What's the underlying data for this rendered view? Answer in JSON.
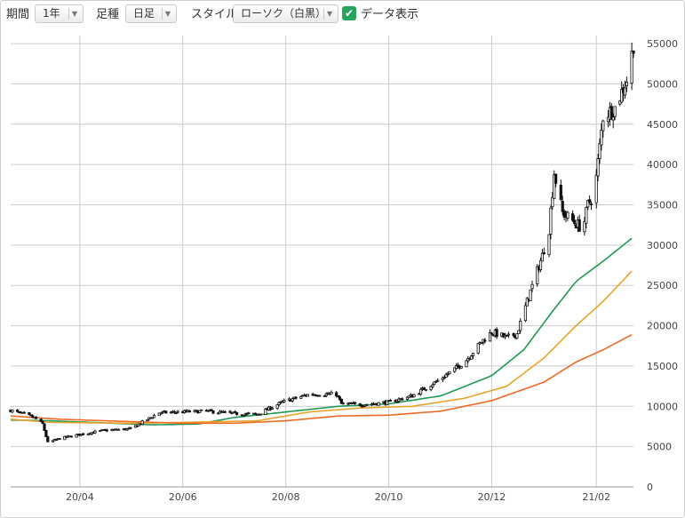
{
  "toolbar": {
    "period_label": "期間",
    "period_value": "1年",
    "ashi_label": "足種",
    "ashi_value": "日足",
    "style_label": "スタイル",
    "style_value": "ローソク（白黒）",
    "data_display_label": "データ表示",
    "data_display_checked": true
  },
  "colors": {
    "candle": "#111111",
    "ma_short": "#1f9a52",
    "ma_mid": "#eaa32a",
    "ma_long": "#ee6a22",
    "grid": "#cccccc"
  },
  "chart_data": {
    "type": "candlestick",
    "x_ticks": [
      "20/04",
      "20/06",
      "20/08",
      "20/10",
      "20/12",
      "21/02"
    ],
    "y_ticks": [
      0,
      5000,
      10000,
      15000,
      20000,
      25000,
      30000,
      35000,
      40000,
      45000,
      50000,
      55000
    ],
    "ylim": [
      0,
      56000
    ],
    "xlim": [
      "2020-02-20",
      "2021-02-23"
    ],
    "y_axis_position": "right",
    "grid": true,
    "price_anchors": [
      [
        "2020-02-20",
        9500
      ],
      [
        "2020-02-28",
        9000
      ],
      [
        "2020-03-05",
        8600
      ],
      [
        "2020-03-10",
        7800
      ],
      [
        "2020-03-13",
        5500
      ],
      [
        "2020-03-20",
        6000
      ],
      [
        "2020-04-01",
        6500
      ],
      [
        "2020-04-15",
        7000
      ],
      [
        "2020-05-01",
        7200
      ],
      [
        "2020-05-18",
        9200
      ],
      [
        "2020-06-01",
        9300
      ],
      [
        "2020-06-15",
        9400
      ],
      [
        "2020-07-01",
        9100
      ],
      [
        "2020-07-15",
        9000
      ],
      [
        "2020-07-31",
        10600
      ],
      [
        "2020-08-15",
        11500
      ],
      [
        "2020-08-31",
        11500
      ],
      [
        "2020-09-03",
        10300
      ],
      [
        "2020-09-15",
        10200
      ],
      [
        "2020-10-01",
        10500
      ],
      [
        "2020-10-15",
        11300
      ],
      [
        "2020-10-31",
        13300
      ],
      [
        "2020-11-15",
        15500
      ],
      [
        "2020-11-25",
        18000
      ],
      [
        "2020-12-01",
        19200
      ],
      [
        "2020-12-10",
        18500
      ],
      [
        "2020-12-16",
        19000
      ],
      [
        "2020-12-22",
        23000
      ],
      [
        "2020-12-31",
        28700
      ],
      [
        "2021-01-04",
        32000
      ],
      [
        "2021-01-07",
        39000
      ],
      [
        "2021-01-12",
        34000
      ],
      [
        "2021-01-18",
        33000
      ],
      [
        "2021-01-24",
        32000
      ],
      [
        "2021-01-27",
        35000
      ],
      [
        "2021-01-31",
        36500
      ],
      [
        "2021-02-05",
        46000
      ],
      [
        "2021-02-12",
        47000
      ],
      [
        "2021-02-20",
        51000
      ],
      [
        "2021-02-23",
        55000
      ]
    ],
    "moving_averages": [
      {
        "color_key": "ma_short",
        "points": [
          [
            "2020-02-20",
            8300
          ],
          [
            "2020-03-15",
            8200
          ],
          [
            "2020-05-15",
            7700
          ],
          [
            "2020-06-10",
            7800
          ],
          [
            "2020-07-01",
            8600
          ],
          [
            "2020-08-01",
            9300
          ],
          [
            "2020-09-01",
            10000
          ],
          [
            "2020-10-01",
            10300
          ],
          [
            "2020-11-01",
            11300
          ],
          [
            "2020-12-01",
            13800
          ],
          [
            "2020-12-20",
            17000
          ],
          [
            "2021-01-05",
            21500
          ],
          [
            "2021-01-20",
            25500
          ],
          [
            "2021-02-05",
            28000
          ],
          [
            "2021-02-23",
            31000
          ]
        ]
      },
      {
        "color_key": "ma_mid",
        "points": [
          [
            "2020-02-20",
            8400
          ],
          [
            "2020-03-15",
            8000
          ],
          [
            "2020-05-01",
            7900
          ],
          [
            "2020-06-01",
            8000
          ],
          [
            "2020-07-15",
            8200
          ],
          [
            "2020-08-15",
            9300
          ],
          [
            "2020-09-15",
            9800
          ],
          [
            "2020-10-15",
            10000
          ],
          [
            "2020-11-15",
            11000
          ],
          [
            "2020-12-10",
            12500
          ],
          [
            "2021-01-01",
            16000
          ],
          [
            "2021-01-20",
            20000
          ],
          [
            "2021-02-05",
            23000
          ],
          [
            "2021-02-23",
            27000
          ]
        ]
      },
      {
        "color_key": "ma_long",
        "points": [
          [
            "2020-02-20",
            8800
          ],
          [
            "2020-03-20",
            8400
          ],
          [
            "2020-05-01",
            8100
          ],
          [
            "2020-06-01",
            7900
          ],
          [
            "2020-07-01",
            7900
          ],
          [
            "2020-08-01",
            8200
          ],
          [
            "2020-09-01",
            8800
          ],
          [
            "2020-10-01",
            8900
          ],
          [
            "2020-11-01",
            9400
          ],
          [
            "2020-12-01",
            10700
          ],
          [
            "2021-01-01",
            13000
          ],
          [
            "2021-01-20",
            15500
          ],
          [
            "2021-02-05",
            17000
          ],
          [
            "2021-02-23",
            19000
          ]
        ]
      }
    ]
  }
}
